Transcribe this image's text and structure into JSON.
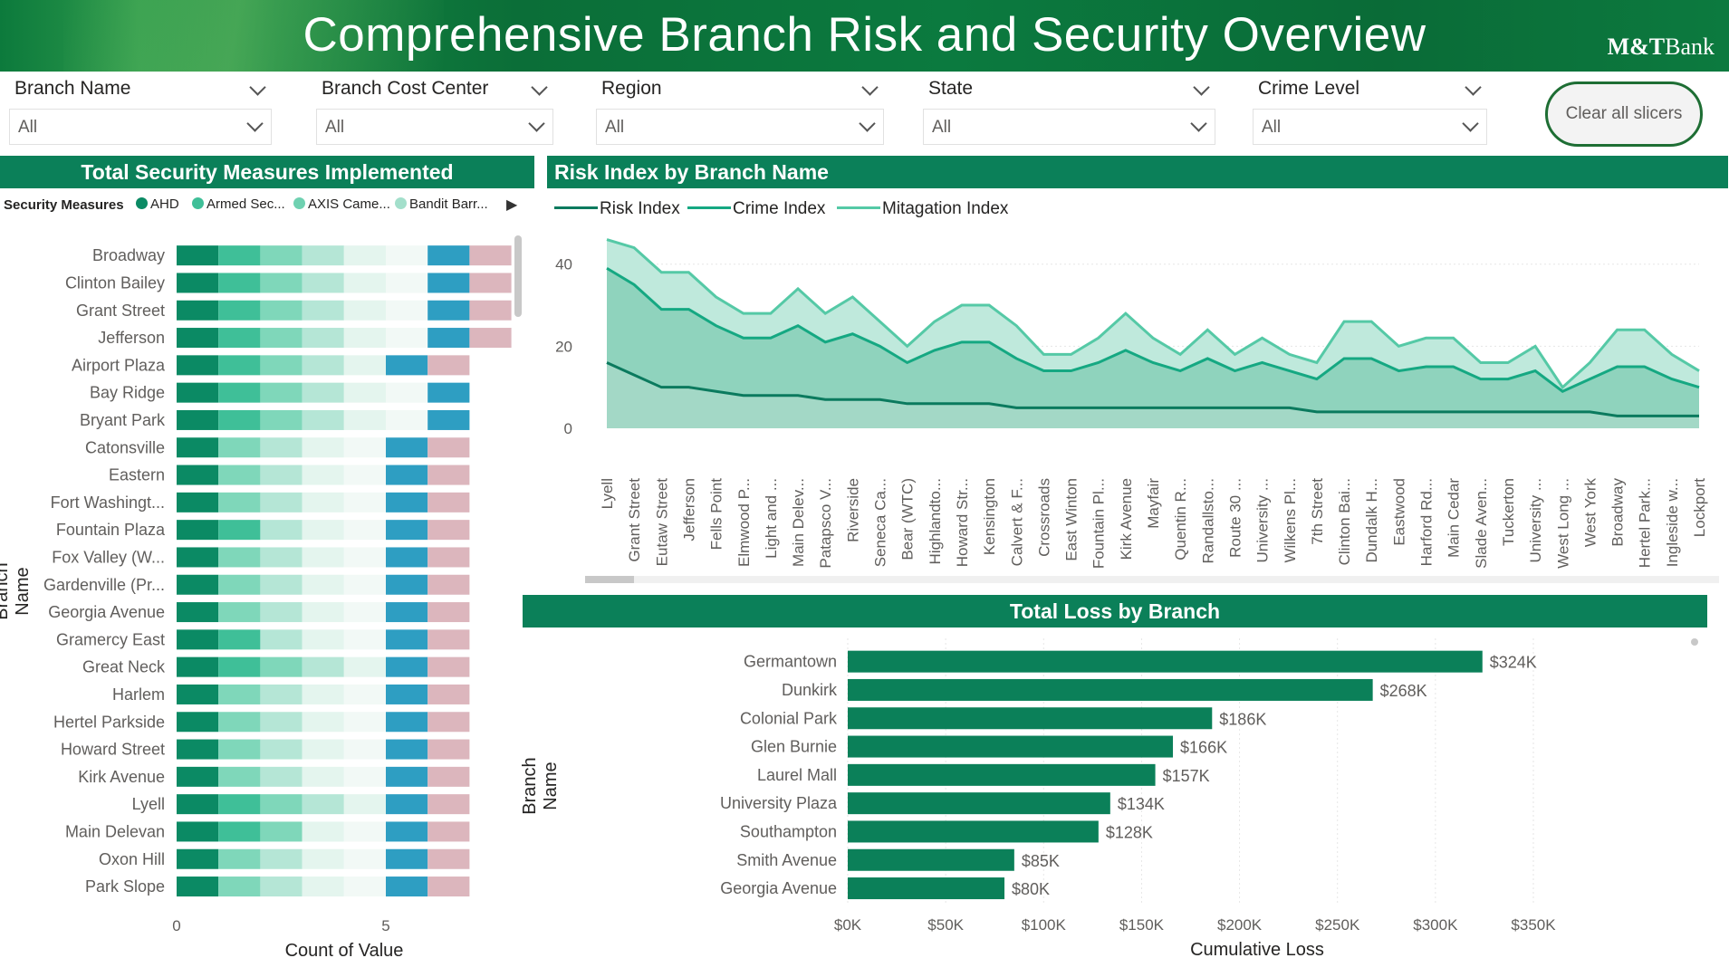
{
  "header": {
    "title": "Comprehensive Branch Risk and Security Overview",
    "logo_bold": "M&T",
    "logo_rest": "Bank"
  },
  "slicers": [
    {
      "label": "Branch Name",
      "value": "All"
    },
    {
      "label": "Branch Cost Center",
      "value": "All"
    },
    {
      "label": "Region",
      "value": "All"
    },
    {
      "label": "State",
      "value": "All"
    },
    {
      "label": "Crime Level",
      "value": "All"
    }
  ],
  "clear_button": "Clear all slicers",
  "colors": {
    "brand": "#0b8059",
    "header": "#0c7a3c",
    "risk": "#0b7a5e",
    "crime": "#15a882",
    "mitigation": "#55c9a6"
  },
  "security_panel": {
    "title": "Total Security Measures Implemented",
    "legend_title": "Security Measures",
    "legend_items": [
      {
        "label": "AHD",
        "color": "#0b8a64"
      },
      {
        "label": "Armed Sec...",
        "color": "#3fbf98"
      },
      {
        "label": "AXIS Came...",
        "color": "#6fd1b1"
      },
      {
        "label": "Bandit Barr...",
        "color": "#a3dfcb"
      }
    ],
    "y_axis_title": "Branch Name",
    "x_axis_title": "Count of Value",
    "x_ticks": [
      "0",
      "5"
    ]
  },
  "risk_panel": {
    "title": "Risk Index by Branch Name"
  },
  "loss_panel": {
    "title": "Total Loss by Branch",
    "y_axis_title": "Branch Name",
    "x_axis_title": "Cumulative Loss"
  },
  "chart_data": [
    {
      "type": "bar",
      "stacked": true,
      "orientation": "horizontal",
      "title": "Total Security Measures Implemented",
      "xlabel": "Count of Value",
      "ylabel": "Branch Name",
      "xlim": [
        0,
        8
      ],
      "segment_colors": [
        "#0b8a64",
        "#3fbf98",
        "#7fd7ba",
        "#b5e6d6",
        "#e4f5ee",
        "#f2f9f6",
        "#2e9ec2",
        "#dcb6bd"
      ],
      "categories": [
        "Broadway",
        "Clinton Bailey",
        "Grant Street",
        "Jefferson",
        "Airport Plaza",
        "Bay Ridge",
        "Bryant Park",
        "Catonsville",
        "Eastern",
        "Fort Washingt...",
        "Fountain Plaza",
        "Fox Valley (W...",
        "Gardenville (Pr...",
        "Georgia Avenue",
        "Gramercy East",
        "Great Neck",
        "Harlem",
        "Hertel Parkside",
        "Howard Street",
        "Kirk Avenue",
        "Lyell",
        "Main Delevan",
        "Oxon Hill",
        "Park Slope"
      ],
      "rows": [
        [
          0,
          1,
          2,
          3,
          4,
          5,
          6,
          7
        ],
        [
          0,
          1,
          2,
          3,
          4,
          5,
          6,
          7
        ],
        [
          0,
          1,
          2,
          3,
          4,
          5,
          6,
          7
        ],
        [
          0,
          1,
          2,
          3,
          4,
          5,
          6,
          7
        ],
        [
          0,
          1,
          2,
          3,
          4,
          6,
          7
        ],
        [
          0,
          1,
          2,
          3,
          4,
          5,
          6
        ],
        [
          0,
          1,
          2,
          3,
          4,
          5,
          6
        ],
        [
          0,
          2,
          3,
          4,
          5,
          6,
          7
        ],
        [
          0,
          2,
          3,
          4,
          5,
          6,
          7
        ],
        [
          0,
          2,
          3,
          4,
          5,
          6,
          7
        ],
        [
          0,
          1,
          3,
          4,
          5,
          6,
          7
        ],
        [
          0,
          2,
          3,
          4,
          5,
          6,
          7
        ],
        [
          0,
          2,
          3,
          4,
          5,
          6,
          7
        ],
        [
          0,
          2,
          3,
          4,
          5,
          6,
          7
        ],
        [
          0,
          1,
          3,
          4,
          5,
          6,
          7
        ],
        [
          0,
          1,
          2,
          3,
          4,
          6,
          7
        ],
        [
          0,
          2,
          3,
          4,
          5,
          6,
          7
        ],
        [
          0,
          2,
          3,
          4,
          5,
          6,
          7
        ],
        [
          0,
          2,
          3,
          4,
          5,
          6,
          7
        ],
        [
          0,
          2,
          3,
          4,
          5,
          6,
          7
        ],
        [
          0,
          1,
          2,
          3,
          4,
          6,
          7
        ],
        [
          0,
          1,
          2,
          4,
          5,
          6,
          7
        ],
        [
          0,
          2,
          3,
          4,
          5,
          6,
          7
        ],
        [
          0,
          2,
          3,
          4,
          5,
          6,
          7
        ]
      ]
    },
    {
      "type": "area",
      "title": "Risk Index by Branch Name",
      "ylim": [
        0,
        47
      ],
      "yticks": [
        0,
        20,
        40
      ],
      "categories": [
        "Lyell",
        "Grant Street",
        "Eutaw Street",
        "Jefferson",
        "Fells Point",
        "Elmwood P...",
        "Light and ...",
        "Main Delev...",
        "Patapsco V...",
        "Riverside",
        "Seneca Ca...",
        "Bear (WTC)",
        "Highlandto...",
        "Howard Str...",
        "Kensington",
        "Calvert & F...",
        "Crossroads",
        "East Winton",
        "Fountain Pl...",
        "Kirk Avenue",
        "Mayfair",
        "Quentin R...",
        "Randallsto...",
        "Route 30 ...",
        "University ...",
        "Wilkens Pl...",
        "7th Street",
        "Clinton Bai...",
        "Dundalk H...",
        "Eastwood",
        "Harford Rd...",
        "Main Cedar",
        "Slade Aven...",
        "Tuckerton",
        "University ...",
        "West Long ...",
        "West York",
        "Broadway",
        "Hertel Park...",
        "Ingleside w...",
        "Lockport"
      ],
      "series": [
        {
          "name": "Risk Index",
          "values": [
            16,
            13,
            10,
            10,
            9,
            8,
            8,
            8,
            7,
            7,
            7,
            6,
            6,
            6,
            6,
            5,
            5,
            5,
            5,
            5,
            5,
            5,
            5,
            5,
            5,
            5,
            4,
            4,
            4,
            4,
            4,
            4,
            4,
            4,
            4,
            4,
            4,
            3,
            3,
            3,
            3
          ]
        },
        {
          "name": "Crime Index",
          "values": [
            39,
            35,
            29,
            29,
            25,
            22,
            22,
            25,
            21,
            23,
            20,
            16,
            19,
            21,
            21,
            17,
            14,
            14,
            16,
            19,
            16,
            14,
            17,
            14,
            16,
            14,
            12,
            17,
            17,
            14,
            15,
            15,
            12,
            12,
            14,
            9,
            12,
            15,
            15,
            12,
            10
          ]
        },
        {
          "name": "Mitagation Index",
          "values": [
            46,
            44,
            38,
            38,
            32,
            28,
            28,
            34,
            28,
            32,
            26,
            20,
            26,
            30,
            30,
            25,
            18,
            18,
            22,
            28,
            22,
            18,
            24,
            18,
            22,
            18,
            16,
            26,
            26,
            20,
            22,
            22,
            16,
            16,
            20,
            10,
            16,
            24,
            24,
            18,
            14
          ]
        }
      ]
    },
    {
      "type": "bar",
      "orientation": "horizontal",
      "title": "Total Loss by Branch",
      "xlabel": "Cumulative Loss",
      "ylabel": "Branch Name",
      "xlim": [
        0,
        350000
      ],
      "xticks": [
        "$0K",
        "$50K",
        "$100K",
        "$150K",
        "$200K",
        "$250K",
        "$300K",
        "$350K"
      ],
      "categories": [
        "Germantown",
        "Dunkirk",
        "Colonial Park",
        "Glen Burnie",
        "Laurel Mall",
        "University Plaza",
        "Southampton",
        "Smith Avenue",
        "Georgia Avenue"
      ],
      "values": [
        324000,
        268000,
        186000,
        166000,
        157000,
        134000,
        128000,
        85000,
        80000
      ],
      "labels": [
        "$324K",
        "$268K",
        "$186K",
        "$166K",
        "$157K",
        "$134K",
        "$128K",
        "$85K",
        "$80K"
      ]
    }
  ]
}
